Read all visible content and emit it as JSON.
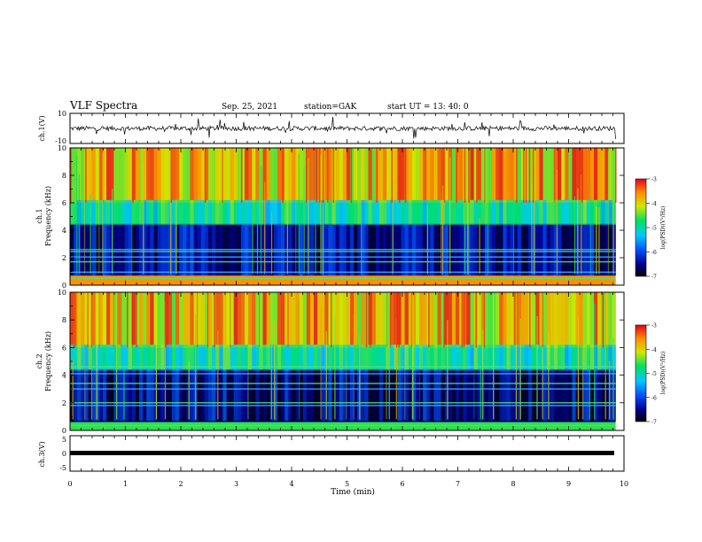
{
  "header": {
    "title": "VLF Spectra",
    "date": "Sep. 25, 2021",
    "station": "station=GAK",
    "start": "start  UT  =  13: 40: 0"
  },
  "chart_data": [
    {
      "type": "line",
      "panel": "ch1-waveform",
      "ylabel": "ch.1(V)",
      "ylim": [
        -10,
        10
      ],
      "yticks": [
        "10",
        "-10"
      ],
      "xlim": [
        0,
        10
      ],
      "description_values": {
        "baseline": 0,
        "data_end_min": 9.85
      }
    },
    {
      "type": "heatmap",
      "panel": "ch1-spectrogram",
      "ylabel_top": "ch.1",
      "ylabel": "Frequency  (kHz)",
      "ylim": [
        0,
        10
      ],
      "yticks": [
        "0",
        "2",
        "4",
        "6",
        "8",
        "10"
      ],
      "xlim": [
        0,
        10
      ],
      "colorbar": {
        "label": "log(PSD)(V²/Hz)",
        "range": [
          -7,
          -3
        ],
        "ticks": [
          "-3",
          "-4",
          "-5",
          "-6",
          "-7"
        ]
      },
      "lines_khz": [
        0.5,
        0.95,
        1.7,
        2.05,
        2.45,
        2.6
      ],
      "bands": [
        {
          "from_khz": 0,
          "to_khz": 0.7,
          "level": -3.6
        },
        {
          "from_khz": 0.7,
          "to_khz": 4.5,
          "level": -6.4
        },
        {
          "from_khz": 4.5,
          "to_khz": 6.0,
          "level": -5.0
        },
        {
          "from_khz": 6.0,
          "to_khz": 10,
          "level": -4.0
        }
      ]
    },
    {
      "type": "heatmap",
      "panel": "ch2-spectrogram",
      "ylabel_top": "ch.2",
      "ylabel": "Frequency  (kHz)",
      "ylim": [
        0,
        10
      ],
      "yticks": [
        "0",
        "2",
        "4",
        "6",
        "8",
        "10"
      ],
      "xlim": [
        0,
        10
      ],
      "colorbar": {
        "label": "log(PSD)(V²/Hz)",
        "range": [
          -7,
          -3
        ],
        "ticks": [
          "-3",
          "-4",
          "-5",
          "-6",
          "-7"
        ]
      },
      "lines_khz": [
        0.35,
        1.8,
        2.0,
        3.0,
        3.4,
        4.1,
        4.6
      ],
      "bands": [
        {
          "from_khz": 0,
          "to_khz": 0.6,
          "level": -4.6
        },
        {
          "from_khz": 0.6,
          "to_khz": 4.3,
          "level": -6.7
        },
        {
          "from_khz": 4.3,
          "to_khz": 6.0,
          "level": -5.1
        },
        {
          "from_khz": 6.0,
          "to_khz": 10,
          "level": -4.2
        }
      ]
    },
    {
      "type": "line",
      "panel": "ch3-waveform",
      "ylabel": "ch.3(V)",
      "ylim": [
        -5,
        5
      ],
      "yticks": [
        "5",
        "0",
        "-5"
      ],
      "xlim": [
        0,
        10
      ],
      "description_values": {
        "constant_value": -1.8,
        "data_end_min": 9.85
      }
    }
  ],
  "xaxis": {
    "label": "Time  (min)",
    "ticks": [
      "0",
      "1",
      "2",
      "3",
      "4",
      "5",
      "6",
      "7",
      "8",
      "9",
      "10"
    ]
  }
}
